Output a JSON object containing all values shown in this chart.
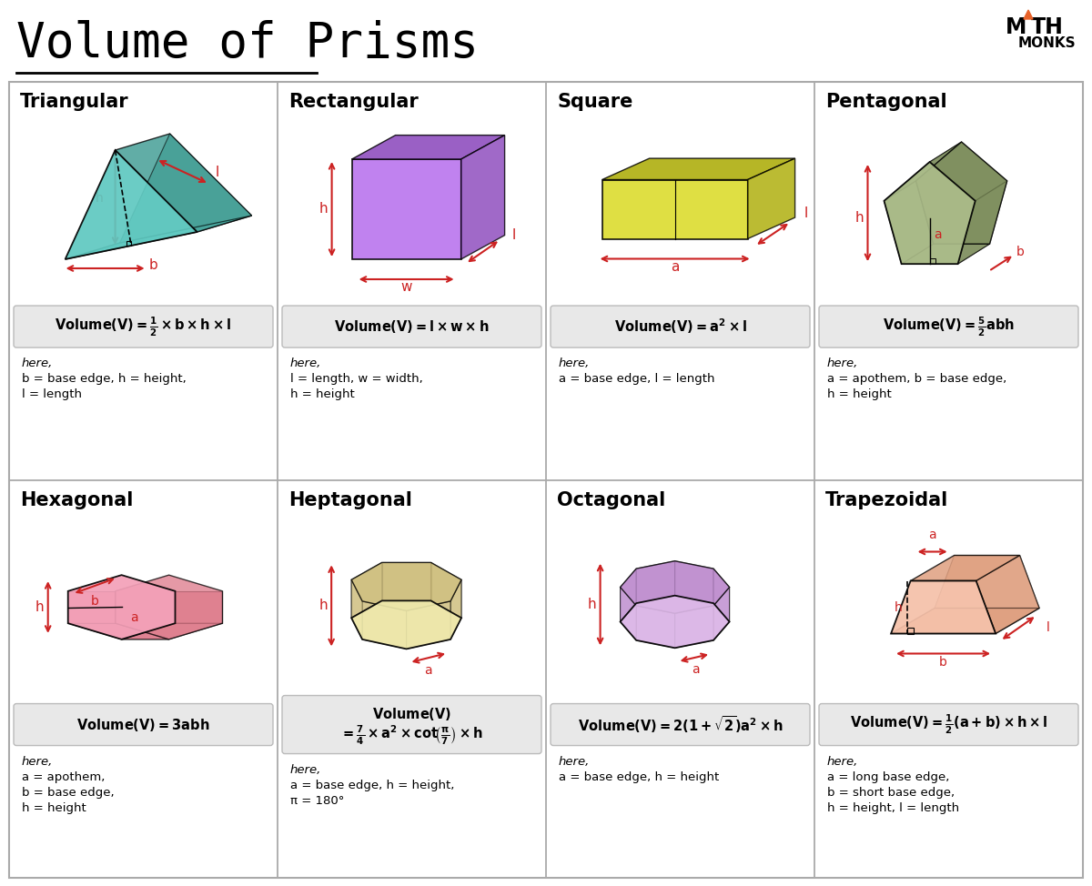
{
  "title": "Volume of Prisms",
  "background_color": "#ffffff",
  "grid_color": "#aaaaaa",
  "title_font_size": 38,
  "cells": [
    {
      "name": "Triangular",
      "row": 0,
      "col": 0,
      "shape_color_face": "#5EC8C0",
      "shape_color_dark": "#3A9990",
      "formula_lines": [
        "Volume (V) = \\frac{1}{2} \\times b \\times h \\times l"
      ],
      "here_text": "here,\nb = base edge, h = height,\nl = length"
    },
    {
      "name": "Rectangular",
      "row": 0,
      "col": 1,
      "shape_color_face": "#BB77EE",
      "shape_color_dark": "#8844BB",
      "formula_lines": [
        "Volume (V) = l \\times w \\times h"
      ],
      "here_text": "here,\nl = length, w = width,\nh = height"
    },
    {
      "name": "Square",
      "row": 0,
      "col": 2,
      "shape_color_face": "#DDDD33",
      "shape_color_dark": "#AAAA00",
      "formula_lines": [
        "Volume (V) = a^2 \\times l"
      ],
      "here_text": "here,\na = base edge, l = length"
    },
    {
      "name": "Pentagonal",
      "row": 0,
      "col": 3,
      "shape_color_face": "#AABB88",
      "shape_color_dark": "#778855",
      "formula_lines": [
        "Volume (V) = \\frac{5}{2}abh"
      ],
      "here_text": "here,\na = apothem, b = base edge,\nh = height"
    },
    {
      "name": "Hexagonal",
      "row": 1,
      "col": 0,
      "shape_color_face": "#F4A0B8",
      "shape_color_dark": "#DD7788",
      "formula_lines": [
        "Volume (V) = 3abh"
      ],
      "here_text": "here,\na = apothem,\nb = base edge,\nh = height"
    },
    {
      "name": "Heptagonal",
      "row": 1,
      "col": 1,
      "shape_color_face": "#EEE8AA",
      "shape_color_dark": "#CCBB77",
      "formula_lines": [
        "Volume (V)",
        "= \\frac{7}{4} \\times a^2 \\times cot\\!\\left(\\frac{\\pi}{7}\\right) \\times h"
      ],
      "here_text": "here,\na = base edge, h = height,\nπ = 180°"
    },
    {
      "name": "Octagonal",
      "row": 1,
      "col": 2,
      "shape_color_face": "#DDB8E8",
      "shape_color_dark": "#BB88CC",
      "formula_lines": [
        "Volume (V) = 2(1 + \\sqrt{2})a^2 \\times h"
      ],
      "here_text": "here,\na = base edge, h = height"
    },
    {
      "name": "Trapezoidal",
      "row": 1,
      "col": 3,
      "shape_color_face": "#F5C0A8",
      "shape_color_dark": "#DD9977",
      "formula_lines": [
        "Volume (V) = \\frac{1}{2}(a + b) \\times h \\times l"
      ],
      "here_text": "here,\na = long base edge,\nb = short base edge,\nh = height, l = length"
    }
  ]
}
